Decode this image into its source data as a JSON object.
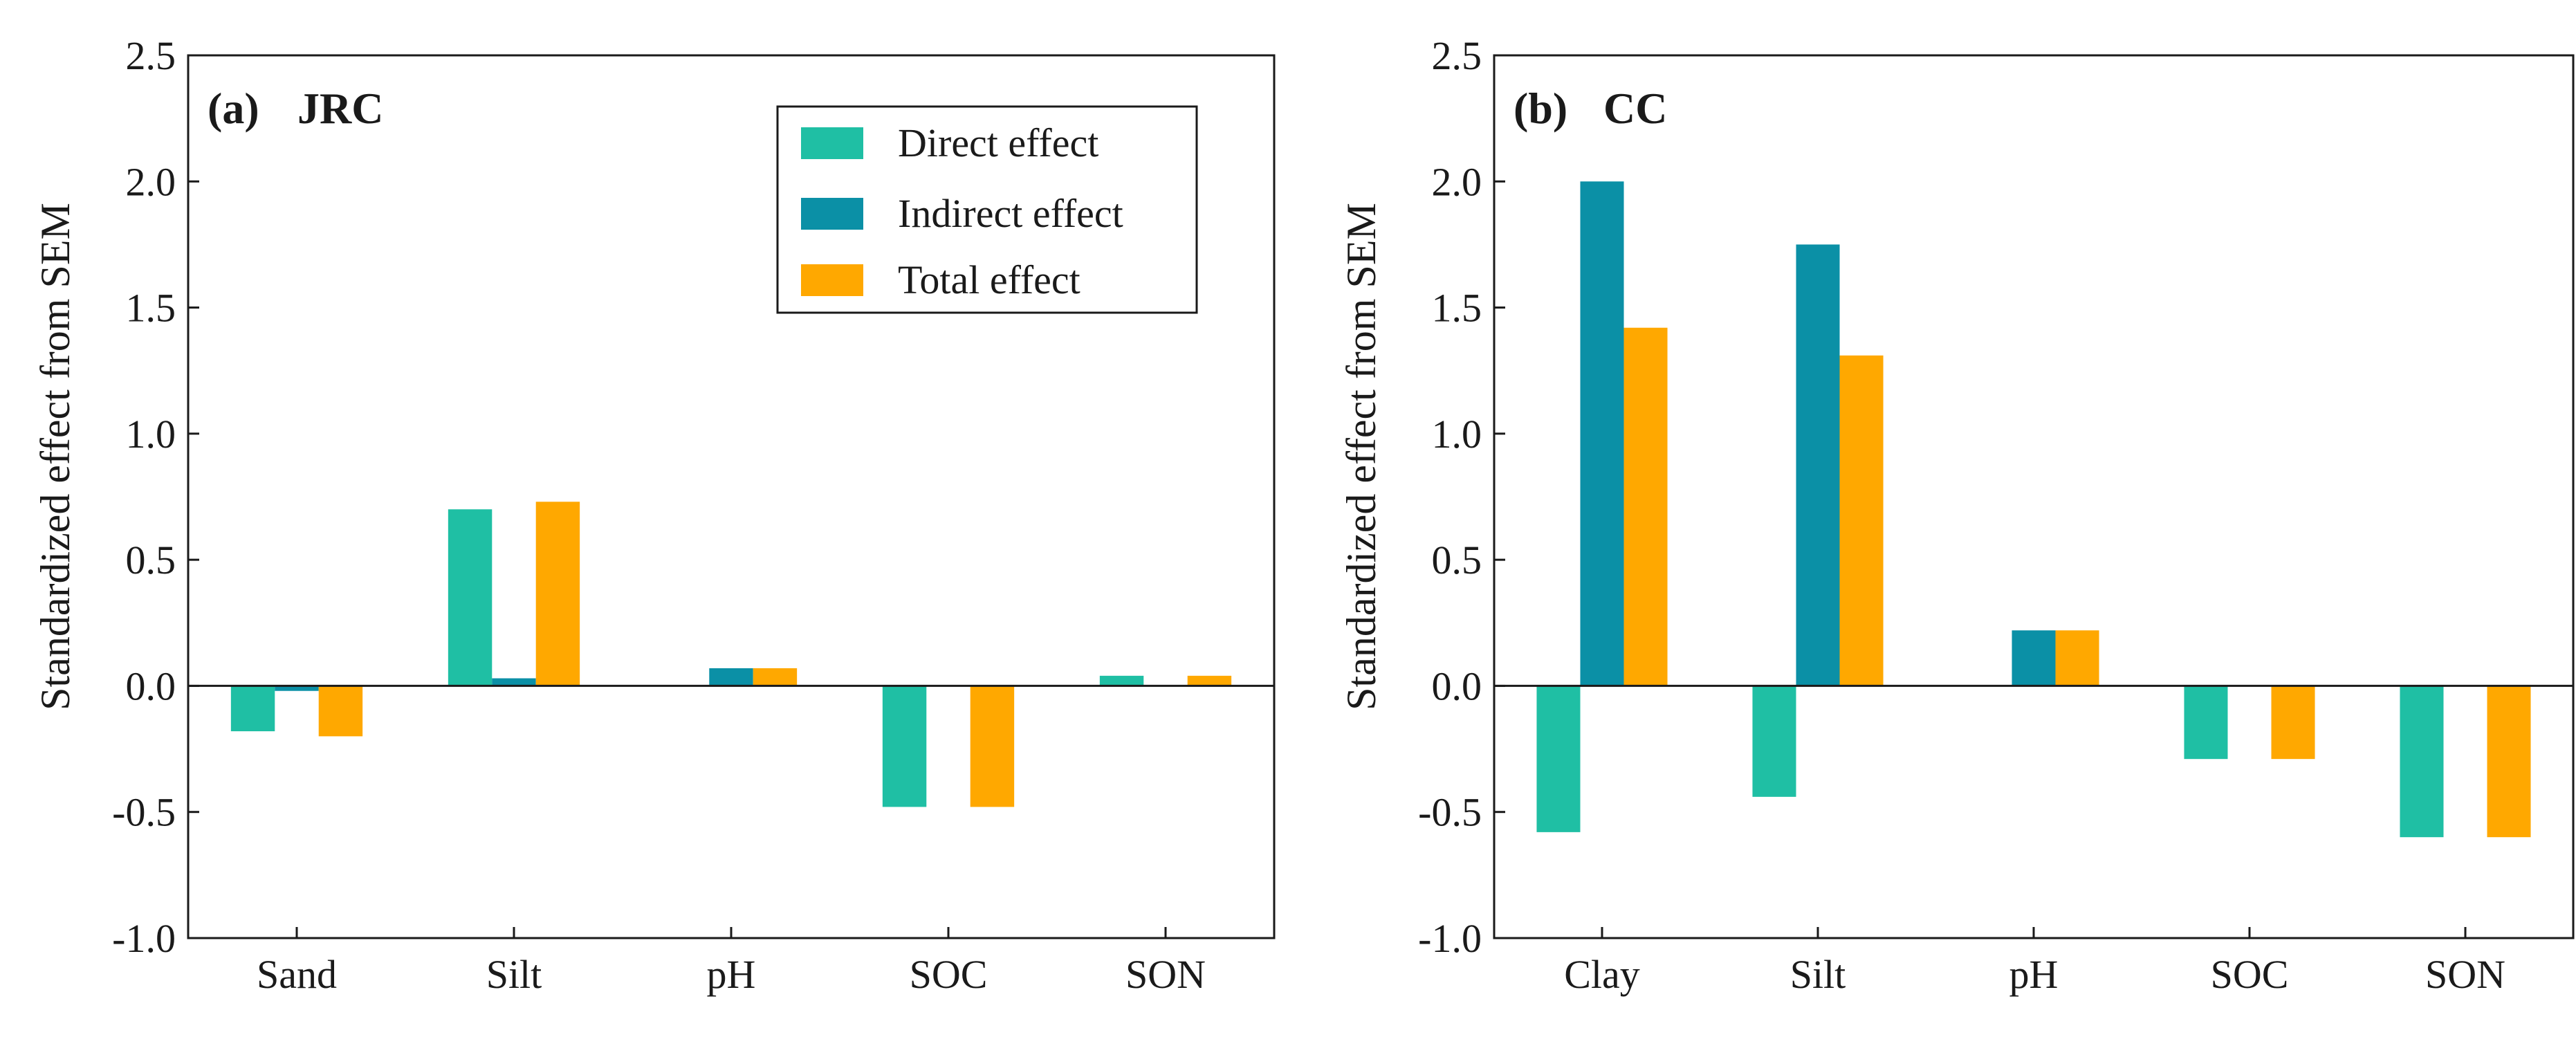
{
  "colors": {
    "direct": "#1fbfa4",
    "indirect": "#0b90a6",
    "total": "#ffa800"
  },
  "legend": {
    "direct_label": "Direct effect",
    "indirect_label": "Indirect effect",
    "total_label": "Total effect"
  },
  "chart_data": [
    {
      "type": "bar",
      "title": "(a)  JRC",
      "title_tag": "(a)",
      "title_name": "JRC",
      "xlabel": "",
      "ylabel": "Standardized effect from SEM",
      "ylim": [
        -1.0,
        2.5
      ],
      "yticks": [
        -1.0,
        -0.5,
        0.0,
        0.5,
        1.0,
        1.5,
        2.0,
        2.5
      ],
      "ytick_labels": [
        "-1.0",
        "-0.5",
        "0.0",
        "0.5",
        "1.0",
        "1.5",
        "2.0",
        "2.5"
      ],
      "categories": [
        "Sand",
        "Silt",
        "pH",
        "SOC",
        "SON"
      ],
      "series": [
        {
          "name": "Direct effect",
          "key": "direct",
          "values": [
            -0.18,
            0.7,
            0.0,
            -0.48,
            0.04
          ]
        },
        {
          "name": "Indirect effect",
          "key": "indirect",
          "values": [
            -0.02,
            0.03,
            0.07,
            0.0,
            0.0
          ]
        },
        {
          "name": "Total effect",
          "key": "total",
          "values": [
            -0.2,
            0.73,
            0.07,
            -0.48,
            0.04
          ]
        }
      ],
      "legend_position": "top-right"
    },
    {
      "type": "bar",
      "title": "(b)  CC",
      "title_tag": "(b)",
      "title_name": "CC",
      "xlabel": "",
      "ylabel": "Standardized effect from SEM",
      "ylim": [
        -1.0,
        2.5
      ],
      "yticks": [
        -1.0,
        -0.5,
        0.0,
        0.5,
        1.0,
        1.5,
        2.0,
        2.5
      ],
      "ytick_labels": [
        "-1.0",
        "-0.5",
        "0.0",
        "0.5",
        "1.0",
        "1.5",
        "2.0",
        "2.5"
      ],
      "categories": [
        "Clay",
        "Silt",
        "pH",
        "SOC",
        "SON"
      ],
      "series": [
        {
          "name": "Direct effect",
          "key": "direct",
          "values": [
            -0.58,
            -0.44,
            0.0,
            -0.29,
            -0.6
          ]
        },
        {
          "name": "Indirect effect",
          "key": "indirect",
          "values": [
            2.0,
            1.75,
            0.22,
            0.0,
            0.0
          ]
        },
        {
          "name": "Total effect",
          "key": "total",
          "values": [
            1.42,
            1.31,
            0.22,
            -0.29,
            -0.6
          ]
        }
      ]
    }
  ]
}
